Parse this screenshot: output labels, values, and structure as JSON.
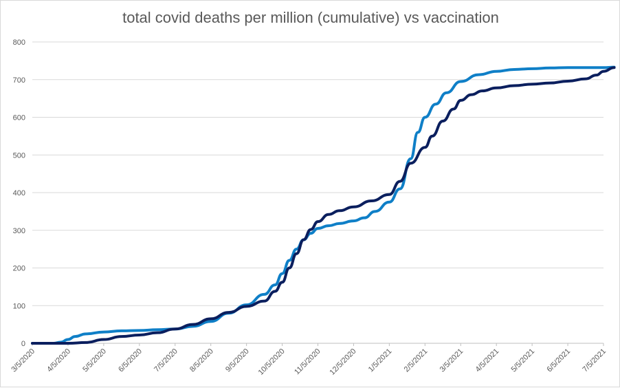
{
  "chart_data": {
    "type": "line",
    "title": "total covid deaths per million (cumulative) vs vaccination",
    "xlabel": "",
    "ylabel": "",
    "ylim": [
      0,
      800
    ],
    "yticks": [
      0,
      100,
      200,
      300,
      400,
      500,
      600,
      700,
      800
    ],
    "x_tick_labels": [
      "3/5/2020",
      "4/5/2020",
      "5/5/2020",
      "6/5/2020",
      "7/5/2020",
      "8/5/2020",
      "9/5/2020",
      "10/5/2020",
      "11/5/2020",
      "12/5/2020",
      "1/5/2021",
      "2/5/2021",
      "3/5/2021",
      "4/5/2021",
      "5/5/2021",
      "6/5/2021",
      "7/5/2021"
    ],
    "grid": true,
    "legend": "none",
    "colors": {
      "series_light": "#0f7fc7",
      "series_dark": "#0b1f5e",
      "grid": "#d9d9d9",
      "axis": "#bfbfbf",
      "text": "#595959"
    },
    "series": [
      {
        "name": "light blue series",
        "points": [
          [
            0,
            0
          ],
          [
            0.6,
            0
          ],
          [
            0.8,
            3
          ],
          [
            1.0,
            10
          ],
          [
            1.2,
            18
          ],
          [
            1.5,
            25
          ],
          [
            2.0,
            30
          ],
          [
            2.5,
            33
          ],
          [
            3.0,
            34
          ],
          [
            3.5,
            36
          ],
          [
            4.0,
            38
          ],
          [
            4.5,
            45
          ],
          [
            5.0,
            58
          ],
          [
            5.5,
            80
          ],
          [
            6.0,
            102
          ],
          [
            6.5,
            130
          ],
          [
            6.8,
            155
          ],
          [
            7.0,
            185
          ],
          [
            7.2,
            220
          ],
          [
            7.4,
            250
          ],
          [
            7.6,
            275
          ],
          [
            7.8,
            292
          ],
          [
            8.0,
            305
          ],
          [
            8.3,
            312
          ],
          [
            8.6,
            318
          ],
          [
            9.0,
            325
          ],
          [
            9.3,
            333
          ],
          [
            9.6,
            350
          ],
          [
            10.0,
            375
          ],
          [
            10.3,
            410
          ],
          [
            10.6,
            490
          ],
          [
            10.8,
            560
          ],
          [
            11.0,
            600
          ],
          [
            11.3,
            635
          ],
          [
            11.6,
            665
          ],
          [
            12.0,
            695
          ],
          [
            12.5,
            713
          ],
          [
            13.0,
            722
          ],
          [
            13.5,
            727
          ],
          [
            14.0,
            729
          ],
          [
            14.5,
            731
          ],
          [
            15.0,
            732
          ],
          [
            15.5,
            732
          ],
          [
            16.0,
            732
          ],
          [
            16.3,
            733
          ]
        ]
      },
      {
        "name": "dark navy series",
        "points": [
          [
            0,
            0
          ],
          [
            1.0,
            0
          ],
          [
            1.5,
            2
          ],
          [
            2.0,
            10
          ],
          [
            2.5,
            18
          ],
          [
            3.0,
            22
          ],
          [
            3.5,
            28
          ],
          [
            4.0,
            38
          ],
          [
            4.5,
            50
          ],
          [
            5.0,
            65
          ],
          [
            5.5,
            82
          ],
          [
            6.0,
            98
          ],
          [
            6.5,
            112
          ],
          [
            6.8,
            138
          ],
          [
            7.0,
            162
          ],
          [
            7.2,
            200
          ],
          [
            7.4,
            238
          ],
          [
            7.6,
            275
          ],
          [
            7.8,
            302
          ],
          [
            8.0,
            323
          ],
          [
            8.3,
            342
          ],
          [
            8.6,
            352
          ],
          [
            9.0,
            362
          ],
          [
            9.5,
            378
          ],
          [
            10.0,
            395
          ],
          [
            10.3,
            430
          ],
          [
            10.6,
            478
          ],
          [
            11.0,
            520
          ],
          [
            11.2,
            550
          ],
          [
            11.5,
            590
          ],
          [
            11.8,
            622
          ],
          [
            12.0,
            645
          ],
          [
            12.3,
            660
          ],
          [
            12.6,
            670
          ],
          [
            13.0,
            678
          ],
          [
            13.5,
            684
          ],
          [
            14.0,
            688
          ],
          [
            14.5,
            691
          ],
          [
            15.0,
            696
          ],
          [
            15.5,
            702
          ],
          [
            15.8,
            712
          ],
          [
            16.0,
            722
          ],
          [
            16.3,
            732
          ]
        ]
      }
    ]
  }
}
